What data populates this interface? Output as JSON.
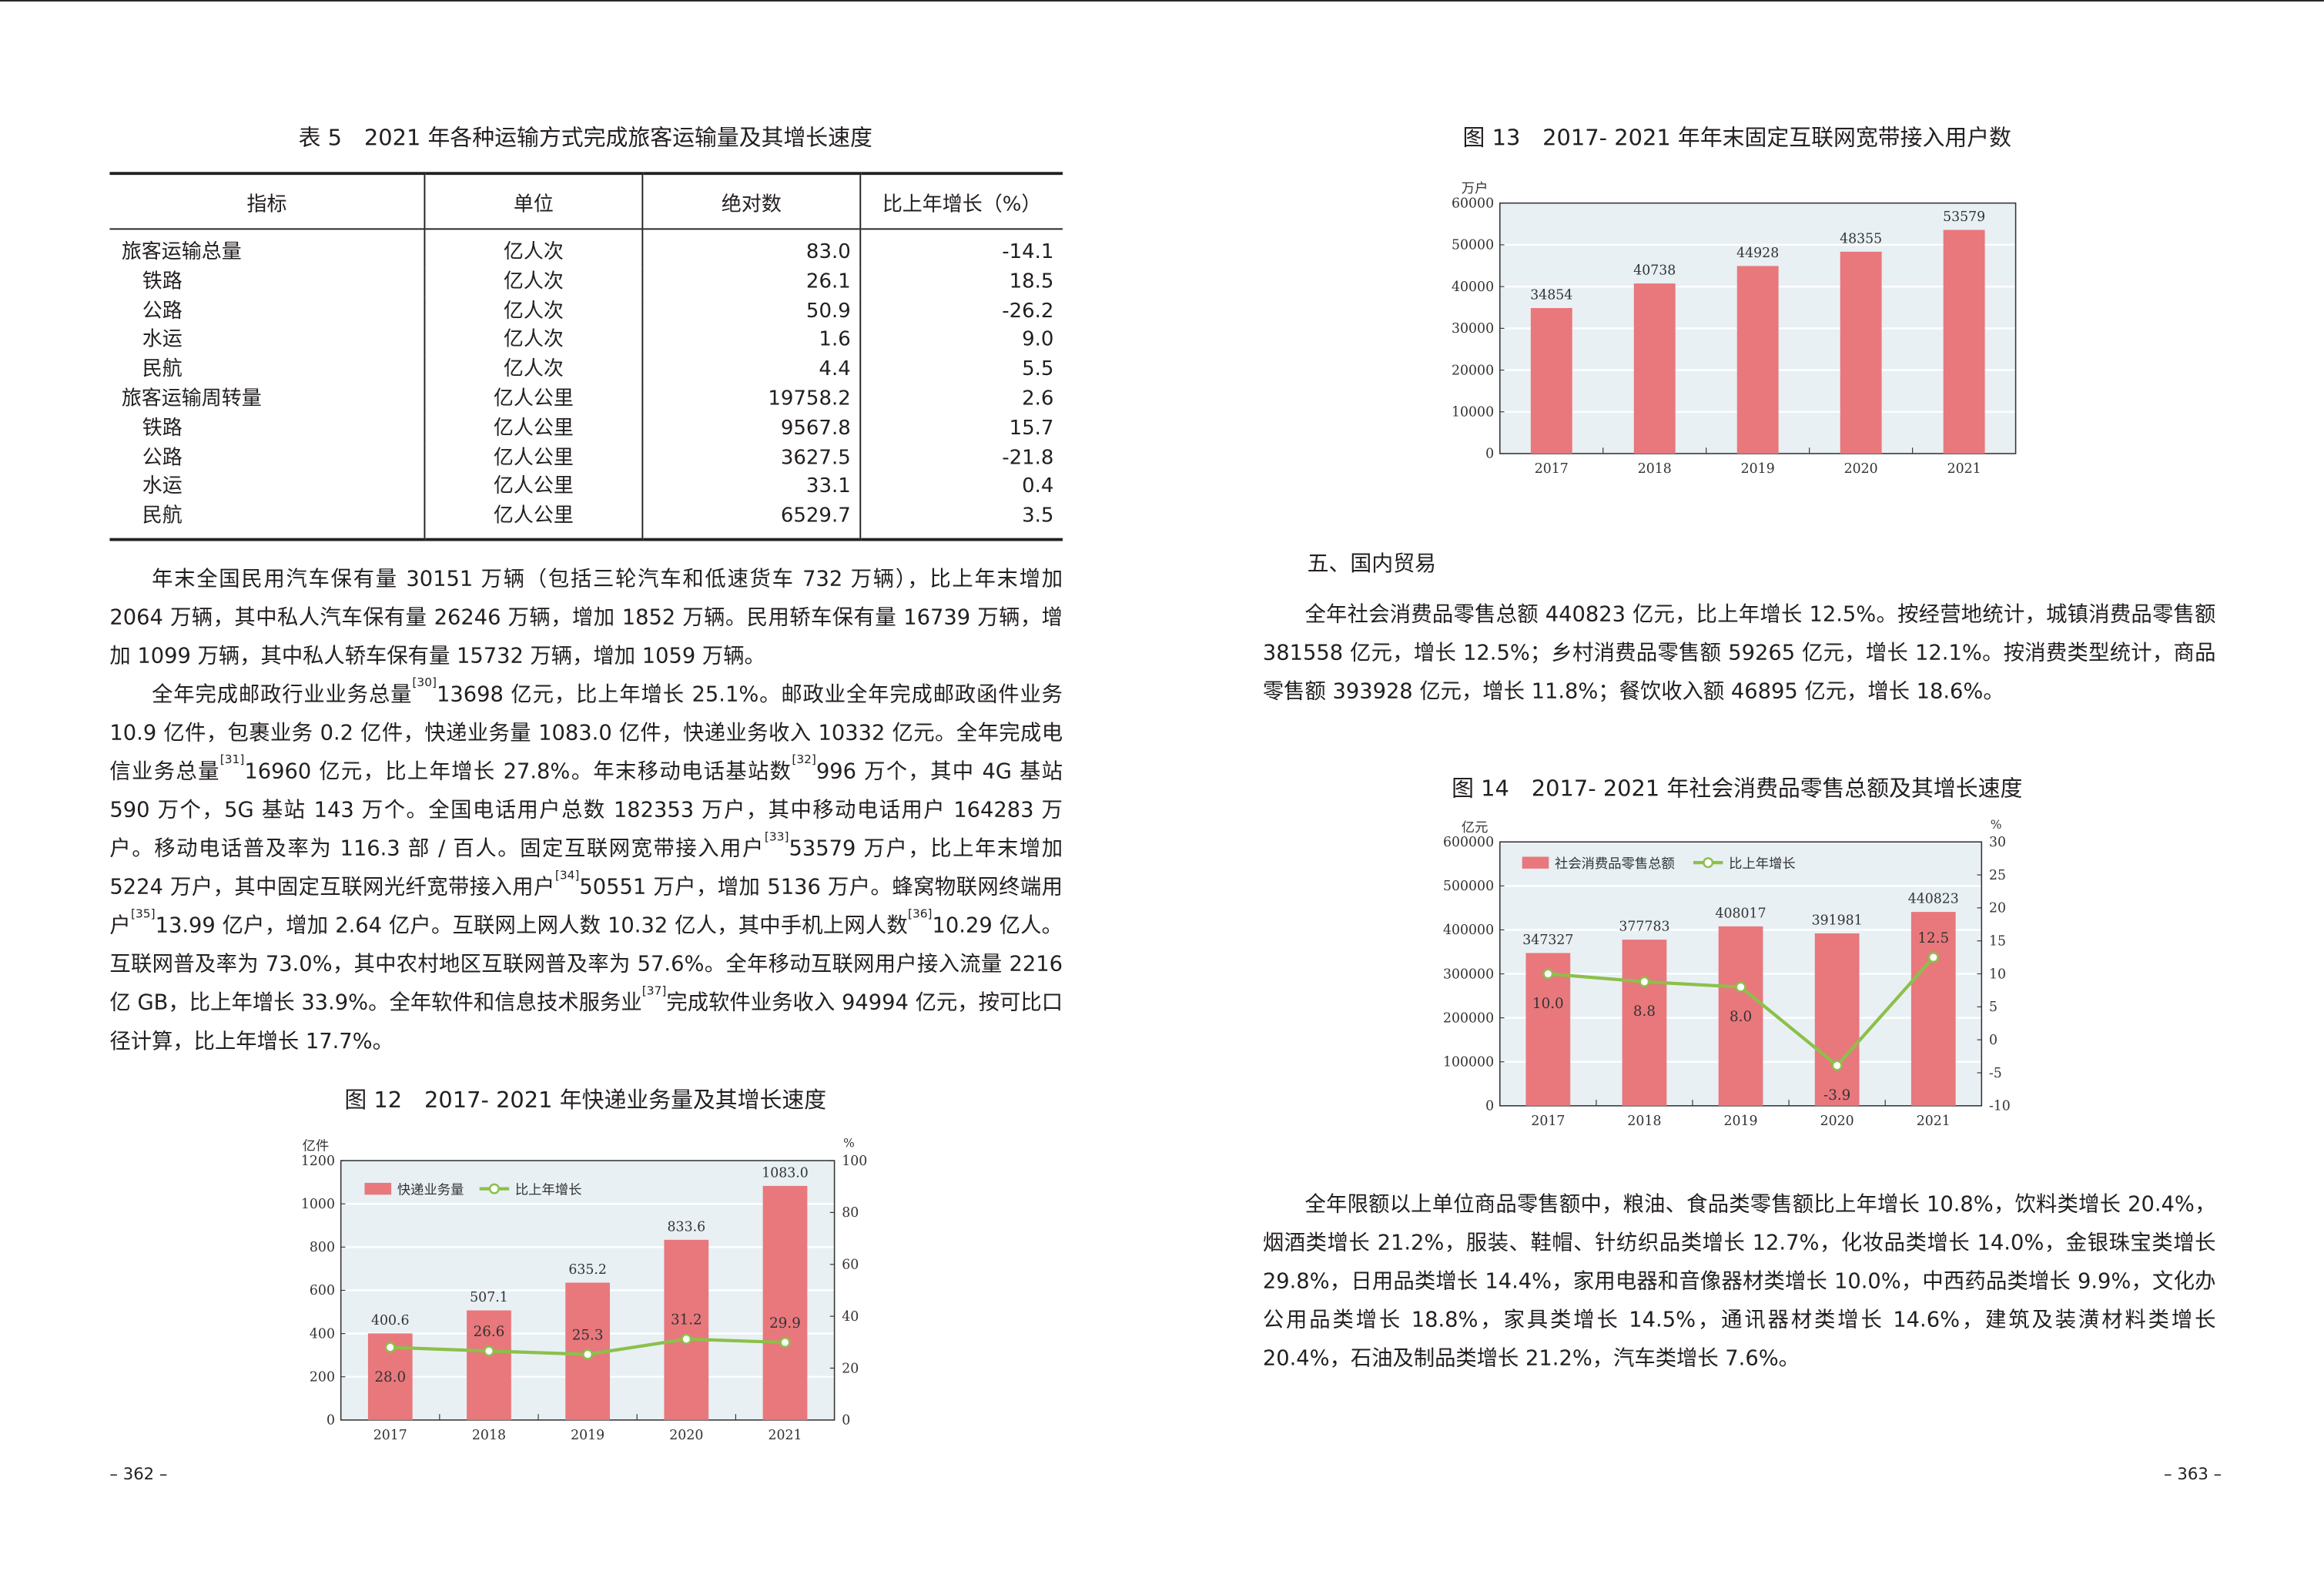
{
  "colors": {
    "bar": "#e8787c",
    "line": "#8cc04a",
    "plot_bg": "#e8f0f4"
  },
  "left_page": {
    "table": {
      "title": "表 5　2021 年各种运输方式完成旅客运输量及其增长速度",
      "headers": [
        "指标",
        "单位",
        "绝对数",
        "比上年增长（%）"
      ],
      "rows": [
        {
          "name": "旅客运输总量",
          "unit": "亿人次",
          "value": "83.0",
          "growth": "-14.1",
          "indent": false
        },
        {
          "name": "铁路",
          "unit": "亿人次",
          "value": "26.1",
          "growth": "18.5",
          "indent": true
        },
        {
          "name": "公路",
          "unit": "亿人次",
          "value": "50.9",
          "growth": "-26.2",
          "indent": true
        },
        {
          "name": "水运",
          "unit": "亿人次",
          "value": "1.6",
          "growth": "9.0",
          "indent": true
        },
        {
          "name": "民航",
          "unit": "亿人次",
          "value": "4.4",
          "growth": "5.5",
          "indent": true
        },
        {
          "name": "旅客运输周转量",
          "unit": "亿人公里",
          "value": "19758.2",
          "growth": "2.6",
          "indent": false
        },
        {
          "name": "铁路",
          "unit": "亿人公里",
          "value": "9567.8",
          "growth": "15.7",
          "indent": true
        },
        {
          "name": "公路",
          "unit": "亿人公里",
          "value": "3627.5",
          "growth": "-21.8",
          "indent": true
        },
        {
          "name": "水运",
          "unit": "亿人公里",
          "value": "33.1",
          "growth": "0.4",
          "indent": true
        },
        {
          "name": "民航",
          "unit": "亿人公里",
          "value": "6529.7",
          "growth": "3.5",
          "indent": true
        }
      ]
    },
    "paragraphs": [
      [
        {
          "t": "年末全国民用汽车保有量 30151 万辆（包括三轮汽车和低速货车 732 万辆），比上年末增加 2064 万辆，其中私人汽车保有量 26246 万辆，增加 1852 万辆。民用轿车保有量 16739 万辆，增加 1099 万辆，其中私人轿车保有量 15732 万辆，增加 1059 万辆。"
        }
      ],
      [
        {
          "t": "全年完成邮政行业业务总量"
        },
        {
          "sup": "[30]"
        },
        {
          "t": "13698 亿元，比上年增长 25.1%。邮政业全年完成邮政函件业务 10.9 亿件，包裹业务 0.2 亿件，快递业务量 1083.0 亿件，快递业务收入 10332 亿元。全年完成电信业务总量"
        },
        {
          "sup": "[31]"
        },
        {
          "t": "16960 亿元，比上年增长 27.8%。年末移动电话基站数"
        },
        {
          "sup": "[32]"
        },
        {
          "t": "996 万个，其中 4G 基站 590 万个，5G 基站 143 万个。全国电话用户总数 182353 万户，其中移动电话用户 164283 万户。移动电话普及率为 116.3 部 / 百人。固定互联网宽带接入用户"
        },
        {
          "sup": "[33]"
        },
        {
          "t": "53579 万户，比上年末增加 5224 万户，其中固定互联网光纤宽带接入用户"
        },
        {
          "sup": "[34]"
        },
        {
          "t": "50551 万户，增加 5136 万户。蜂窝物联网终端用户"
        },
        {
          "sup": "[35]"
        },
        {
          "t": "13.99 亿户，增加 2.64 亿户。互联网上网人数 10.32 亿人，其中手机上网人数"
        },
        {
          "sup": "[36]"
        },
        {
          "t": "10.29 亿人。互联网普及率为 73.0%，其中农村地区互联网普及率为 57.6%。全年移动互联网用户接入流量 2216 亿 GB，比上年增长 33.9%。全年软件和信息技术服务业"
        },
        {
          "sup": "[37]"
        },
        {
          "t": "完成软件业务收入 94994 亿元，按可比口径计算，比上年增长 17.7%。"
        }
      ]
    ],
    "page_number": "– 362 –"
  },
  "right_page": {
    "section_heading": "五、国内贸易",
    "paragraphs": [
      [
        {
          "t": "全年社会消费品零售总额 440823 亿元，比上年增长 12.5%。按经营地统计，城镇消费品零售额 381558 亿元，增长 12.5%；乡村消费品零售额 59265 亿元，增长 12.1%。按消费类型统计，商品零售额 393928 亿元，增长 11.8%；餐饮收入额 46895 亿元，增长 18.6%。"
        }
      ],
      [
        {
          "t": "全年限额以上单位商品零售额中，粮油、食品类零售额比上年增长 10.8%，饮料类增长 20.4%，烟酒类增长 21.2%，服装、鞋帽、针纺织品类增长 12.7%，化妆品类增长 14.0%，金银珠宝类增长 29.8%，日用品类增长 14.4%，家用电器和音像器材类增长 10.0%，中西药品类增长 9.9%，文化办公用品类增长 18.8%，家具类增长 14.5%，通讯器材类增长 14.6%，建筑及装潢材料类增长 20.4%，石油及制品类增长 21.2%，汽车类增长 7.6%。"
        }
      ]
    ],
    "page_number": "– 363 –"
  },
  "chart_data": [
    {
      "type": "bar",
      "title": "图 12　2017- 2021 年快递业务量及其增长速度",
      "categories": [
        "2017",
        "2018",
        "2019",
        "2020",
        "2021"
      ],
      "series": [
        {
          "name": "快递业务量",
          "type": "bar",
          "axis": "left",
          "values": [
            400.6,
            507.1,
            635.2,
            833.6,
            1083.0
          ],
          "labels": [
            "400.6",
            "507.1",
            "635.2",
            "833.6",
            "1083.0"
          ]
        },
        {
          "name": "比上年增长",
          "type": "line",
          "axis": "right",
          "values": [
            28.0,
            26.6,
            25.3,
            31.2,
            29.9
          ],
          "labels": [
            "28.0",
            "26.6",
            "25.3",
            "31.2",
            "29.9"
          ]
        }
      ],
      "ylabel": "亿件",
      "ylim": [
        0,
        1200
      ],
      "yticks": [
        "0",
        "200",
        "400",
        "600",
        "800",
        "1000",
        "1200"
      ],
      "y2label": "%",
      "y2lim": [
        0,
        100
      ],
      "y2ticks": [
        "0",
        "20",
        "40",
        "60",
        "80",
        "100"
      ],
      "grid": true,
      "legend": "top-left"
    },
    {
      "type": "bar",
      "title": "图 13　2017- 2021 年年末固定互联网宽带接入用户数",
      "categories": [
        "2017",
        "2018",
        "2019",
        "2020",
        "2021"
      ],
      "series": [
        {
          "type": "bar",
          "axis": "left",
          "values": [
            34854,
            40738,
            44928,
            48355,
            53579
          ],
          "labels": [
            "34854",
            "40738",
            "44928",
            "48355",
            "53579"
          ]
        }
      ],
      "ylabel": "万户",
      "ylim": [
        0,
        60000
      ],
      "yticks": [
        "0",
        "10000",
        "20000",
        "30000",
        "40000",
        "50000",
        "60000"
      ],
      "grid": true
    },
    {
      "type": "bar",
      "title": "图 14　2017- 2021 年社会消费品零售总额及其增长速度",
      "categories": [
        "2017",
        "2018",
        "2019",
        "2020",
        "2021"
      ],
      "series": [
        {
          "name": "社会消费品零售总额",
          "type": "bar",
          "axis": "left",
          "values": [
            347327,
            377783,
            408017,
            391981,
            440823
          ],
          "labels": [
            "347327",
            "377783",
            "408017",
            "391981",
            "440823"
          ]
        },
        {
          "name": "比上年增长",
          "type": "line",
          "axis": "right",
          "values": [
            10.0,
            8.8,
            8.0,
            -3.9,
            12.5
          ],
          "labels": [
            "10.0",
            "8.8",
            "8.0",
            "-3.9",
            "12.5"
          ]
        }
      ],
      "ylabel": "亿元",
      "ylim": [
        0,
        600000
      ],
      "yticks": [
        "0",
        "100000",
        "200000",
        "300000",
        "400000",
        "500000",
        "600000"
      ],
      "y2label": "%",
      "y2lim": [
        -10,
        30
      ],
      "y2ticks": [
        "-10",
        "-5",
        "0",
        "5",
        "10",
        "15",
        "20",
        "25",
        "30"
      ],
      "grid": true,
      "legend": "top-left"
    }
  ]
}
